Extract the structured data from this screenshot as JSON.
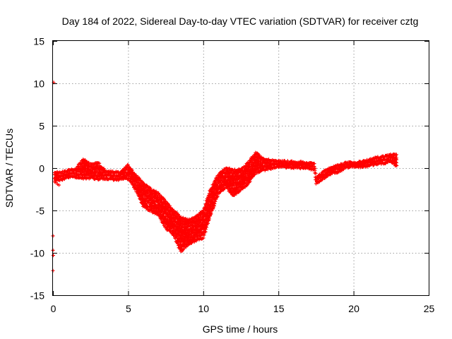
{
  "chart_data": {
    "type": "scatter",
    "title": "Day 184 of 2022, Sidereal Day-to-day VTEC variation (SDTVAR) for receiver cztg",
    "xlabel": "GPS time / hours",
    "ylabel": "SDTVAR / TECUs",
    "xlim": [
      0,
      25
    ],
    "ylim": [
      -15,
      15
    ],
    "xticks": [
      "0",
      "5",
      "10",
      "15",
      "20",
      "25"
    ],
    "yticks": [
      "15",
      "10",
      "5",
      "0",
      "-5",
      "-10",
      "-15"
    ],
    "grid": true,
    "marker": "plus",
    "color": "#ff0000",
    "series": [
      {
        "name": "SDTVAR",
        "band": [
          {
            "x": 0.1,
            "lo": -1.5,
            "hi": -0.5
          },
          {
            "x": 0.5,
            "lo": -1.4,
            "hi": -0.6
          },
          {
            "x": 1.0,
            "lo": -1.0,
            "hi": -0.3
          },
          {
            "x": 1.5,
            "lo": -1.0,
            "hi": -0.2
          },
          {
            "x": 2.0,
            "lo": -1.2,
            "hi": 1.0
          },
          {
            "x": 2.5,
            "lo": -1.1,
            "hi": 0.4
          },
          {
            "x": 3.0,
            "lo": -1.3,
            "hi": 0.6
          },
          {
            "x": 3.5,
            "lo": -1.2,
            "hi": -0.4
          },
          {
            "x": 4.0,
            "lo": -1.3,
            "hi": -0.5
          },
          {
            "x": 4.5,
            "lo": -1.3,
            "hi": -0.5
          },
          {
            "x": 5.0,
            "lo": -1.2,
            "hi": 0.3
          },
          {
            "x": 5.5,
            "lo": -2.5,
            "hi": -0.8
          },
          {
            "x": 6.0,
            "lo": -4.5,
            "hi": -1.8
          },
          {
            "x": 6.5,
            "lo": -5.0,
            "hi": -2.5
          },
          {
            "x": 7.0,
            "lo": -5.5,
            "hi": -3.0
          },
          {
            "x": 7.5,
            "lo": -7.0,
            "hi": -4.0
          },
          {
            "x": 8.0,
            "lo": -7.8,
            "hi": -5.0
          },
          {
            "x": 8.5,
            "lo": -9.8,
            "hi": -5.8
          },
          {
            "x": 9.0,
            "lo": -9.0,
            "hi": -6.2
          },
          {
            "x": 9.5,
            "lo": -8.5,
            "hi": -5.8
          },
          {
            "x": 10.0,
            "lo": -8.2,
            "hi": -5.0
          },
          {
            "x": 10.5,
            "lo": -5.5,
            "hi": -2.5
          },
          {
            "x": 11.0,
            "lo": -3.0,
            "hi": -0.8
          },
          {
            "x": 11.5,
            "lo": -2.2,
            "hi": 0.0
          },
          {
            "x": 12.0,
            "lo": -3.2,
            "hi": -0.3
          },
          {
            "x": 12.5,
            "lo": -2.5,
            "hi": -0.2
          },
          {
            "x": 13.0,
            "lo": -1.8,
            "hi": 0.6
          },
          {
            "x": 13.5,
            "lo": -0.5,
            "hi": 1.8
          },
          {
            "x": 14.0,
            "lo": -0.2,
            "hi": 1.0
          },
          {
            "x": 15.0,
            "lo": 0.2,
            "hi": 0.8
          },
          {
            "x": 16.0,
            "lo": 0.1,
            "hi": 0.7
          },
          {
            "x": 17.0,
            "lo": 0.0,
            "hi": 0.6
          },
          {
            "x": 17.4,
            "lo": -0.2,
            "hi": 0.5
          },
          {
            "x": 17.5,
            "lo": -1.8,
            "hi": -1.2
          },
          {
            "x": 18.0,
            "lo": -1.2,
            "hi": -0.4
          },
          {
            "x": 18.5,
            "lo": -0.6,
            "hi": 0.0
          },
          {
            "x": 19.0,
            "lo": -0.4,
            "hi": 0.3
          },
          {
            "x": 19.5,
            "lo": 0.1,
            "hi": 0.6
          },
          {
            "x": 20.0,
            "lo": 0.2,
            "hi": 0.6
          },
          {
            "x": 20.5,
            "lo": 0.2,
            "hi": 0.7
          },
          {
            "x": 21.0,
            "lo": 0.3,
            "hi": 0.9
          },
          {
            "x": 21.5,
            "lo": 0.5,
            "hi": 1.2
          },
          {
            "x": 22.0,
            "lo": 0.6,
            "hi": 1.3
          },
          {
            "x": 22.5,
            "lo": 0.8,
            "hi": 1.6
          },
          {
            "x": 22.9,
            "lo": 0.2,
            "hi": 1.5
          }
        ],
        "outliers": [
          {
            "x": 0.05,
            "y": 10.1
          },
          {
            "x": 0.0,
            "y": -8.0
          },
          {
            "x": 0.0,
            "y": -9.7
          },
          {
            "x": 0.02,
            "y": -10.3
          },
          {
            "x": 0.0,
            "y": -12.1
          },
          {
            "x": 0.2,
            "y": -1.7
          },
          {
            "x": 0.3,
            "y": -1.9
          },
          {
            "x": 0.4,
            "y": -2.0
          }
        ]
      }
    ]
  }
}
